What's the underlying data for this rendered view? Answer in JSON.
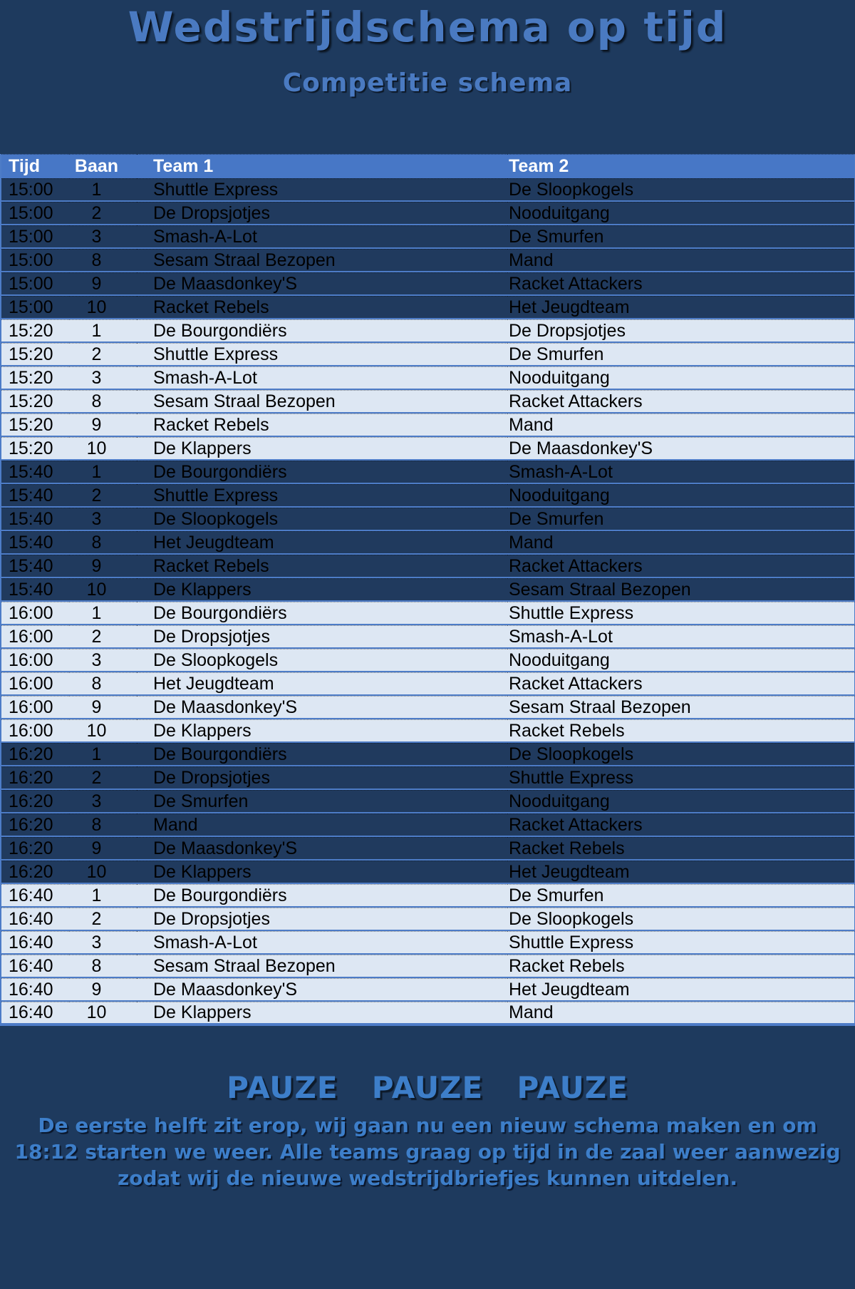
{
  "page": {
    "title": "Wedstrijdschema op tijd",
    "subtitle": "Competitie schema"
  },
  "table": {
    "columns": [
      "Tijd",
      "Baan",
      "Team 1",
      "Team 2"
    ],
    "rows": [
      {
        "tijd": "15:00",
        "baan": "1",
        "team1": "Shuttle Express",
        "team2": "De Sloopkogels",
        "shade": "dark"
      },
      {
        "tijd": "15:00",
        "baan": "2",
        "team1": "De Dropsjotjes",
        "team2": "Nooduitgang",
        "shade": "dark"
      },
      {
        "tijd": "15:00",
        "baan": "3",
        "team1": "Smash-A-Lot",
        "team2": "De Smurfen",
        "shade": "dark"
      },
      {
        "tijd": "15:00",
        "baan": "8",
        "team1": "Sesam Straal Bezopen",
        "team2": "Mand",
        "shade": "dark"
      },
      {
        "tijd": "15:00",
        "baan": "9",
        "team1": "De Maasdonkey'S",
        "team2": "Racket Attackers",
        "shade": "dark"
      },
      {
        "tijd": "15:00",
        "baan": "10",
        "team1": "Racket Rebels",
        "team2": "Het Jeugdteam",
        "shade": "dark"
      },
      {
        "tijd": "15:20",
        "baan": "1",
        "team1": "De Bourgondiërs",
        "team2": "De Dropsjotjes",
        "shade": "light"
      },
      {
        "tijd": "15:20",
        "baan": "2",
        "team1": "Shuttle Express",
        "team2": "De Smurfen",
        "shade": "light"
      },
      {
        "tijd": "15:20",
        "baan": "3",
        "team1": "Smash-A-Lot",
        "team2": "Nooduitgang",
        "shade": "light"
      },
      {
        "tijd": "15:20",
        "baan": "8",
        "team1": "Sesam Straal Bezopen",
        "team2": "Racket Attackers",
        "shade": "light"
      },
      {
        "tijd": "15:20",
        "baan": "9",
        "team1": "Racket Rebels",
        "team2": "Mand",
        "shade": "light"
      },
      {
        "tijd": "15:20",
        "baan": "10",
        "team1": "De Klappers",
        "team2": "De Maasdonkey'S",
        "shade": "light"
      },
      {
        "tijd": "15:40",
        "baan": "1",
        "team1": "De Bourgondiërs",
        "team2": "Smash-A-Lot",
        "shade": "dark"
      },
      {
        "tijd": "15:40",
        "baan": "2",
        "team1": "Shuttle Express",
        "team2": "Nooduitgang",
        "shade": "dark"
      },
      {
        "tijd": "15:40",
        "baan": "3",
        "team1": "De Sloopkogels",
        "team2": "De Smurfen",
        "shade": "dark"
      },
      {
        "tijd": "15:40",
        "baan": "8",
        "team1": "Het Jeugdteam",
        "team2": "Mand",
        "shade": "dark"
      },
      {
        "tijd": "15:40",
        "baan": "9",
        "team1": "Racket Rebels",
        "team2": "Racket Attackers",
        "shade": "dark"
      },
      {
        "tijd": "15:40",
        "baan": "10",
        "team1": "De Klappers",
        "team2": "Sesam Straal Bezopen",
        "shade": "dark"
      },
      {
        "tijd": "16:00",
        "baan": "1",
        "team1": "De Bourgondiërs",
        "team2": "Shuttle Express",
        "shade": "light"
      },
      {
        "tijd": "16:00",
        "baan": "2",
        "team1": "De Dropsjotjes",
        "team2": "Smash-A-Lot",
        "shade": "light"
      },
      {
        "tijd": "16:00",
        "baan": "3",
        "team1": "De Sloopkogels",
        "team2": "Nooduitgang",
        "shade": "light"
      },
      {
        "tijd": "16:00",
        "baan": "8",
        "team1": "Het Jeugdteam",
        "team2": "Racket Attackers",
        "shade": "light"
      },
      {
        "tijd": "16:00",
        "baan": "9",
        "team1": "De Maasdonkey'S",
        "team2": "Sesam Straal Bezopen",
        "shade": "light"
      },
      {
        "tijd": "16:00",
        "baan": "10",
        "team1": "De Klappers",
        "team2": "Racket Rebels",
        "shade": "light"
      },
      {
        "tijd": "16:20",
        "baan": "1",
        "team1": "De Bourgondiërs",
        "team2": "De Sloopkogels",
        "shade": "dark"
      },
      {
        "tijd": "16:20",
        "baan": "2",
        "team1": "De Dropsjotjes",
        "team2": "Shuttle Express",
        "shade": "dark"
      },
      {
        "tijd": "16:20",
        "baan": "3",
        "team1": "De Smurfen",
        "team2": "Nooduitgang",
        "shade": "dark"
      },
      {
        "tijd": "16:20",
        "baan": "8",
        "team1": "Mand",
        "team2": "Racket Attackers",
        "shade": "dark"
      },
      {
        "tijd": "16:20",
        "baan": "9",
        "team1": "De Maasdonkey'S",
        "team2": "Racket Rebels",
        "shade": "dark"
      },
      {
        "tijd": "16:20",
        "baan": "10",
        "team1": "De Klappers",
        "team2": "Het Jeugdteam",
        "shade": "dark"
      },
      {
        "tijd": "16:40",
        "baan": "1",
        "team1": "De Bourgondiërs",
        "team2": "De Smurfen",
        "shade": "light"
      },
      {
        "tijd": "16:40",
        "baan": "2",
        "team1": "De Dropsjotjes",
        "team2": "De Sloopkogels",
        "shade": "light"
      },
      {
        "tijd": "16:40",
        "baan": "3",
        "team1": "Smash-A-Lot",
        "team2": "Shuttle Express",
        "shade": "light"
      },
      {
        "tijd": "16:40",
        "baan": "8",
        "team1": "Sesam Straal Bezopen",
        "team2": "Racket Rebels",
        "shade": "light"
      },
      {
        "tijd": "16:40",
        "baan": "9",
        "team1": "De Maasdonkey'S",
        "team2": "Het Jeugdteam",
        "shade": "light"
      },
      {
        "tijd": "16:40",
        "baan": "10",
        "team1": "De Klappers",
        "team2": "Mand",
        "shade": "light"
      }
    ]
  },
  "footer": {
    "pauze_heading": "PAUZE  PAUZE  PAUZE",
    "message": "De eerste helft zit erop, wij gaan nu een nieuw schema maken en om 18:12 starten we weer. Alle teams graag op tijd in de zaal weer aanwezig zodat wij de nieuwe wedstrijdbriefjes kunnen uitdelen."
  },
  "colors": {
    "bg": "#1e3a5e",
    "header_bg": "#4777c6",
    "header_text": "#ffffff",
    "row_light": "#dde7f3",
    "row_dark": "#203a5e",
    "row_text": "#000000",
    "separator": "#4d7cc7",
    "title_blue": "#4a7ac1",
    "footer_blue": "#3d7ec9"
  }
}
